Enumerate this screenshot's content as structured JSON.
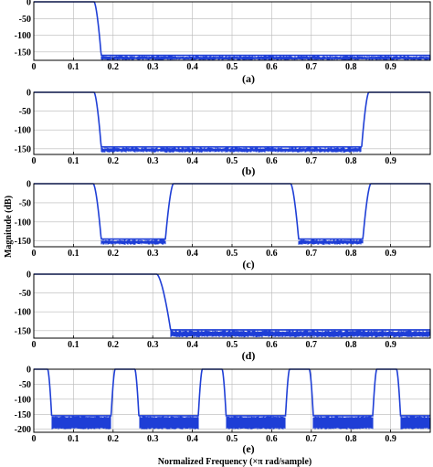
{
  "figure": {
    "xlabel": "Normalized Frequency (×π rad/sample)",
    "ylabel": "Magnitude (dB)",
    "line_color": "#1f3fd6",
    "grid_color": "#b8b8b8"
  },
  "chart_data": [
    {
      "type": "line",
      "label": "(a)",
      "xlim": [
        0,
        1
      ],
      "ylim": [
        -175,
        0
      ],
      "xticks": [
        "0",
        "0.1",
        "0.2",
        "0.3",
        "0.4",
        "0.5",
        "0.6",
        "0.7",
        "0.8",
        "0.9"
      ],
      "yticks": [
        "0",
        "-50",
        "-100",
        "-150"
      ],
      "ytick_values": [
        0,
        -50,
        -100,
        -150
      ],
      "passbands": [
        [
          0,
          0.152
        ]
      ],
      "edge_width": 0.018,
      "stopband_level": -160,
      "ripple_low": -175,
      "grid": true
    },
    {
      "type": "line",
      "label": "(b)",
      "xlim": [
        0,
        1
      ],
      "ylim": [
        -165,
        0
      ],
      "xticks": [
        "0",
        "0.1",
        "0.2",
        "0.3",
        "0.4",
        "0.5",
        "0.6",
        "0.7",
        "0.8",
        "0.9"
      ],
      "yticks": [
        "0",
        "-50",
        "-100",
        "-150"
      ],
      "ytick_values": [
        0,
        -50,
        -100,
        -150
      ],
      "passbands": [
        [
          0,
          0.152
        ],
        [
          0.845,
          1.0
        ]
      ],
      "edge_width": 0.018,
      "stopband_level": -145,
      "ripple_low": -160,
      "grid": true
    },
    {
      "type": "line",
      "label": "(c)",
      "xlim": [
        0,
        1
      ],
      "ylim": [
        -165,
        0
      ],
      "xticks": [
        "0",
        "0.1",
        "0.2",
        "0.3",
        "0.4",
        "0.5",
        "0.6",
        "0.7",
        "0.8",
        "0.9"
      ],
      "yticks": [
        "0",
        "-50",
        "-100",
        "-150"
      ],
      "ytick_values": [
        0,
        -50,
        -100,
        -150
      ],
      "passbands": [
        [
          0,
          0.15
        ],
        [
          0.352,
          0.648
        ],
        [
          0.85,
          1.0
        ]
      ],
      "edge_width": 0.02,
      "stopband_level": -145,
      "ripple_low": -160,
      "grid": true
    },
    {
      "type": "line",
      "label": "(d)",
      "xlim": [
        0,
        1
      ],
      "ylim": [
        -170,
        0
      ],
      "xticks": [
        "0",
        "0.1",
        "0.2",
        "0.3",
        "0.4",
        "0.5",
        "0.6",
        "0.7",
        "0.8",
        "0.9"
      ],
      "yticks": [
        "0",
        "-50",
        "-100",
        "-150"
      ],
      "ytick_values": [
        0,
        -50,
        -100,
        -150
      ],
      "passbands": [
        [
          0,
          0.31
        ]
      ],
      "edge_width": 0.035,
      "stopband_level": -148,
      "ripple_low": -168,
      "grid": true
    },
    {
      "type": "line",
      "label": "(e)",
      "xlim": [
        0,
        1
      ],
      "ylim": [
        -210,
        0
      ],
      "xticks": [
        "0",
        "0.1",
        "0.2",
        "0.3",
        "0.4",
        "0.5",
        "0.6",
        "0.7",
        "0.8",
        "0.9"
      ],
      "yticks": [
        "0",
        "-50",
        "-100",
        "-150",
        "-200"
      ],
      "ytick_values": [
        0,
        -50,
        -100,
        -150,
        -200
      ],
      "passbands": [
        [
          0,
          0.035
        ],
        [
          0.205,
          0.255
        ],
        [
          0.425,
          0.475
        ],
        [
          0.645,
          0.695
        ],
        [
          0.865,
          0.915
        ]
      ],
      "edge_width": 0.01,
      "stopband_level": -155,
      "ripple_low": -200,
      "grid": true
    }
  ]
}
